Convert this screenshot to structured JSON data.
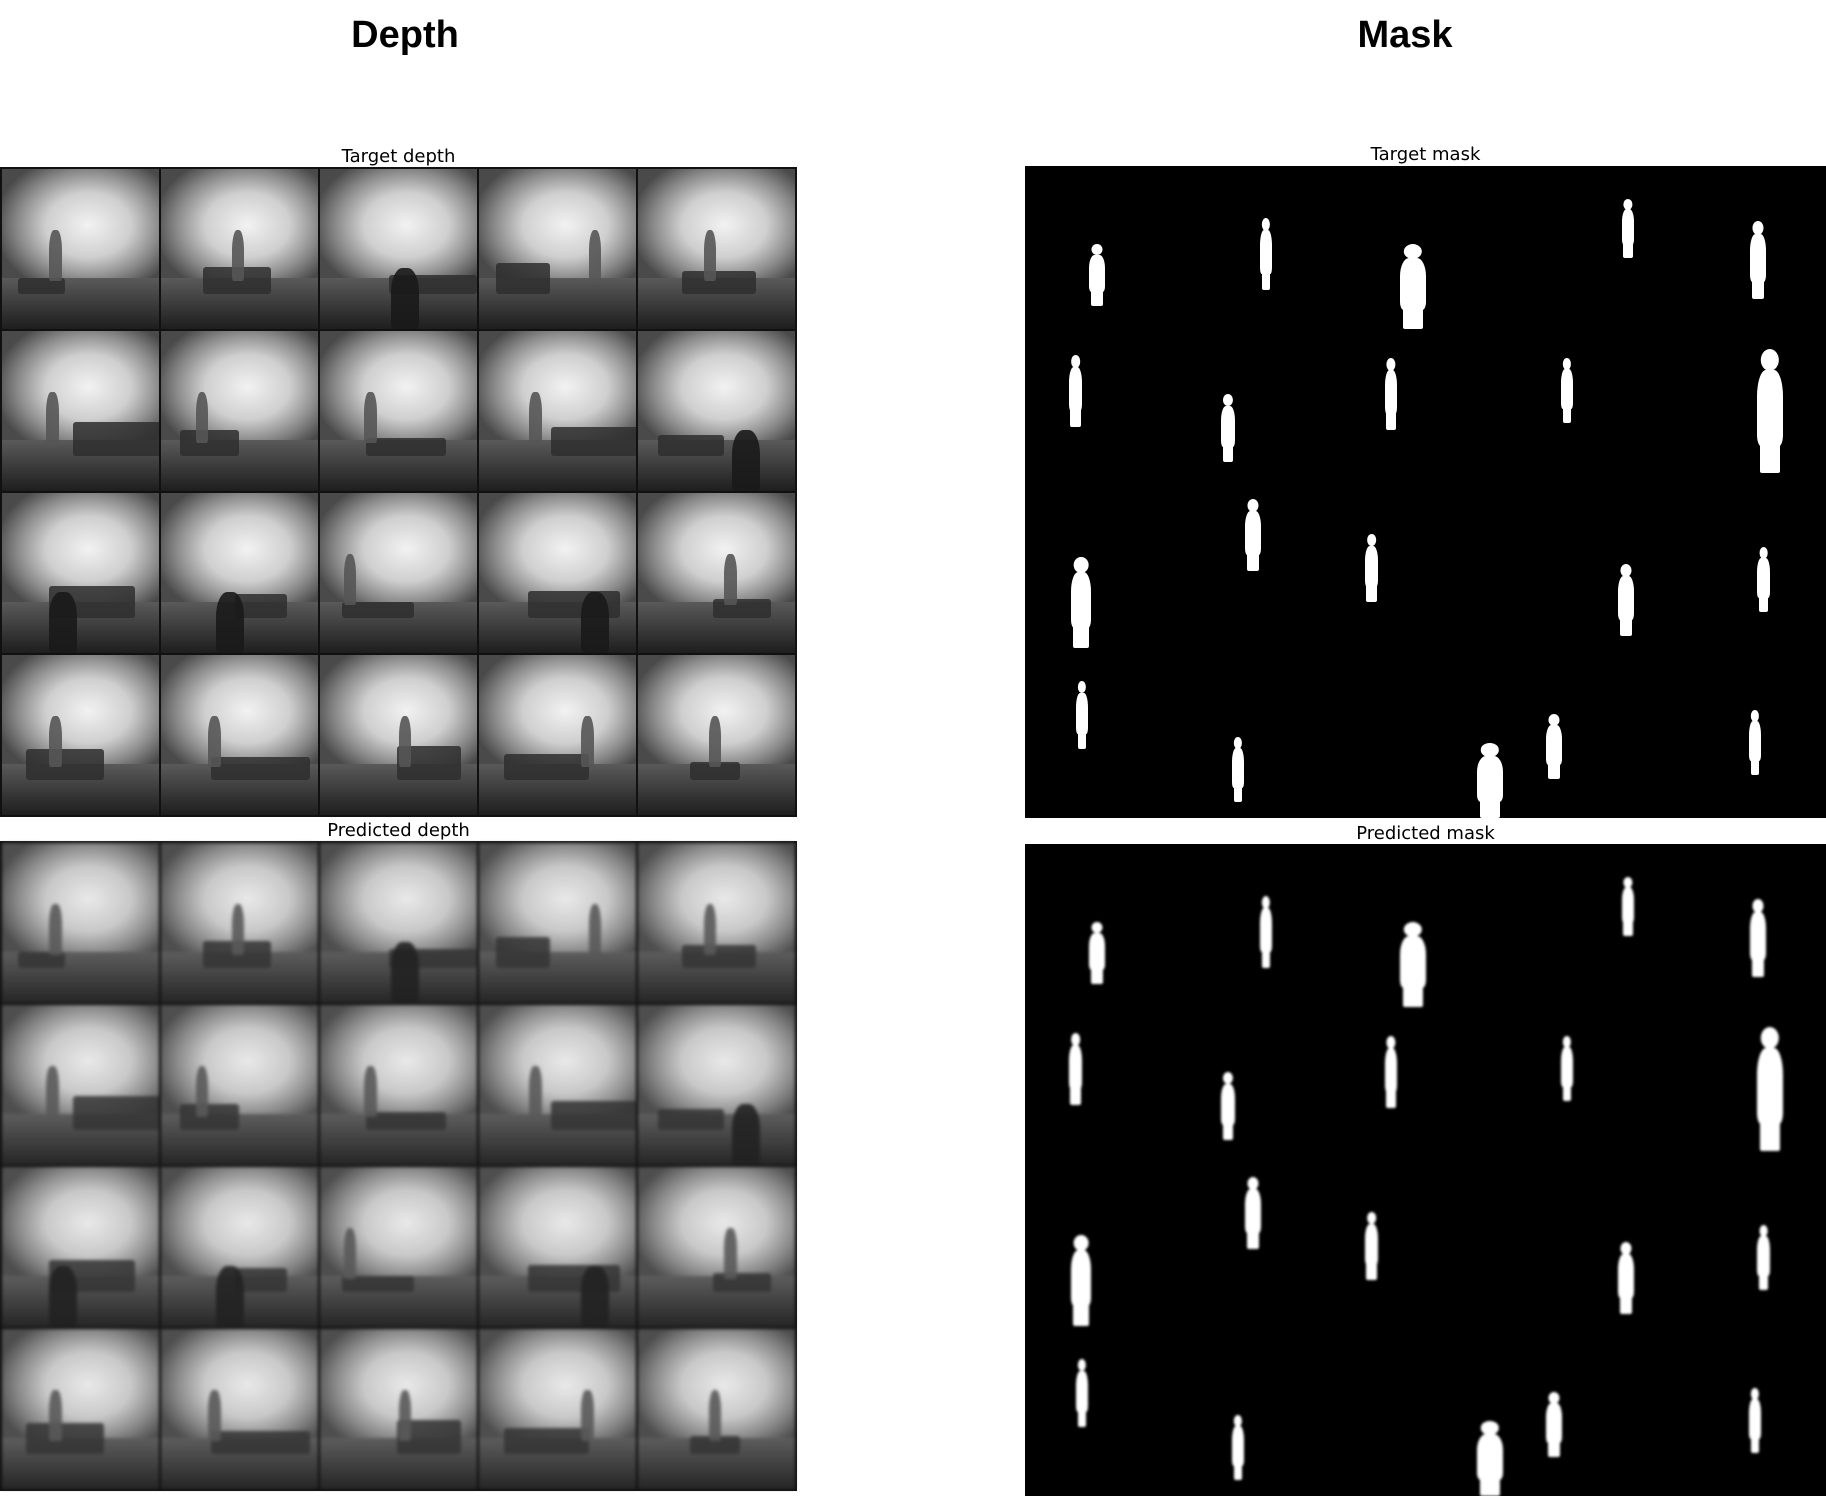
{
  "headings": {
    "depth": "Depth",
    "mask": "Mask"
  },
  "panels": {
    "target_depth": "Target depth",
    "predicted_depth": "Predicted depth",
    "target_mask": "Target mask",
    "predicted_mask": "Predicted mask"
  },
  "grid": {
    "rows": 4,
    "cols": 5
  }
}
